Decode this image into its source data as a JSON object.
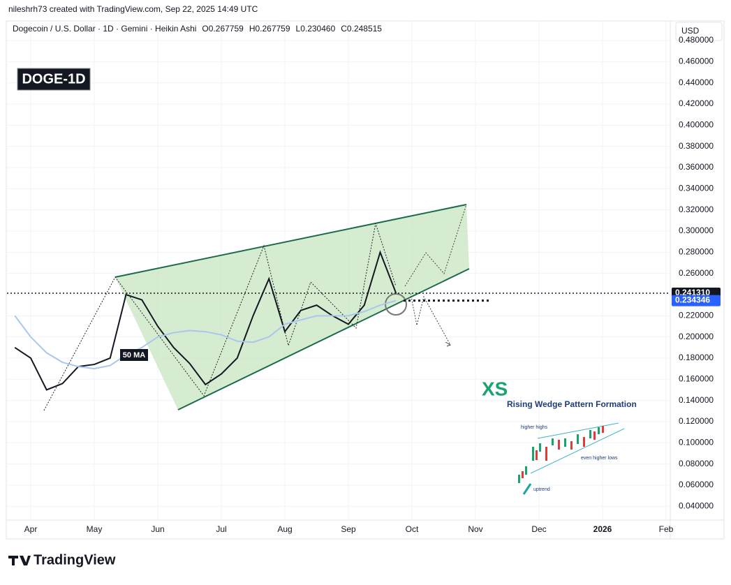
{
  "header": {
    "attribution": "nileshrh73 created with TradingView.com, Sep 22, 2025 14:49 UTC",
    "legend": "Dogecoin / U.S. Dollar · 1D · Gemini · Heikin Ashi",
    "ohlc": [
      "O0.267759",
      "H0.267759",
      "L0.230460",
      "C0.248515"
    ]
  },
  "chart_data": {
    "type": "line",
    "title": "DOGE-1D",
    "currency": "USD",
    "categories": [
      null,
      "Apr",
      null,
      null,
      null,
      "May",
      null,
      null,
      null,
      "Jun",
      null,
      null,
      null,
      "Jul",
      null,
      null,
      null,
      "Aug",
      null,
      null,
      null,
      "Sep",
      null,
      null,
      null,
      "Oct",
      null,
      null,
      null,
      "Nov",
      null,
      null,
      null,
      "Dec",
      null,
      null,
      null,
      "2026",
      null,
      null,
      null,
      "Feb"
    ],
    "series": [
      {
        "color": "#131722",
        "values": [
          0.19,
          0.18,
          0.15,
          0.156,
          0.172,
          0.174,
          0.18,
          0.24,
          0.235,
          0.21,
          0.19,
          0.175,
          0.155,
          0.165,
          0.18,
          0.22,
          0.255,
          0.205,
          0.225,
          0.23,
          0.22,
          0.212,
          0.23,
          0.28,
          0.24131,
          null,
          null,
          null,
          null,
          null,
          null,
          null,
          null,
          null,
          null,
          null,
          null,
          null,
          null,
          null,
          null,
          null
        ]
      },
      {
        "name": "50 MA",
        "color": "#a9c7ee",
        "values": [
          0.22,
          0.2,
          0.185,
          0.176,
          0.172,
          0.17,
          0.173,
          0.183,
          0.19,
          0.2,
          0.204,
          0.206,
          0.205,
          0.202,
          0.196,
          0.195,
          0.2,
          0.212,
          0.216,
          0.22,
          0.22,
          0.22,
          0.224,
          0.23,
          0.234346,
          null,
          null,
          null,
          null,
          null,
          null,
          null,
          null,
          null,
          null,
          null,
          null,
          null,
          null,
          null,
          null,
          null
        ]
      }
    ],
    "price_labels": [
      {
        "value": 0.24131,
        "label": "0.241310",
        "color": "#131722"
      },
      {
        "value": 0.234346,
        "label": "0.234346",
        "color": "#2962ff"
      }
    ],
    "ylim": [
      0.027,
      0.482
    ],
    "yticks": [
      {
        "value": 0.04,
        "label": "0.040000"
      },
      {
        "value": 0.06,
        "label": "0.060000"
      },
      {
        "value": 0.08,
        "label": "0.080000"
      },
      {
        "value": 0.1,
        "label": "0.100000"
      },
      {
        "value": 0.12,
        "label": "0.120000"
      },
      {
        "value": 0.14,
        "label": "0.140000"
      },
      {
        "value": 0.16,
        "label": "0.160000"
      },
      {
        "value": 0.18,
        "label": "0.180000"
      },
      {
        "value": 0.2,
        "label": "0.200000"
      },
      {
        "value": 0.22,
        "label": "0.220000"
      },
      {
        "value": 0.24,
        "label": "0.240000"
      },
      {
        "value": 0.26,
        "label": "0.260000"
      },
      {
        "value": 0.28,
        "label": "0.280000"
      },
      {
        "value": 0.3,
        "label": "0.300000"
      },
      {
        "value": 0.32,
        "label": "0.320000"
      },
      {
        "value": 0.34,
        "label": "0.340000"
      },
      {
        "value": 0.36,
        "label": "0.360000"
      },
      {
        "value": 0.38,
        "label": "0.380000"
      },
      {
        "value": 0.4,
        "label": "0.400000"
      },
      {
        "value": 0.42,
        "label": "0.420000"
      },
      {
        "value": 0.44,
        "label": "0.440000"
      },
      {
        "value": 0.46,
        "label": "0.460000"
      },
      {
        "value": 0.48,
        "label": "0.480000"
      }
    ],
    "grid": true
  },
  "inset": {
    "logo": "XS",
    "title": "Rising Wedge Pattern Formation",
    "notes": [
      "higher highs",
      "even higher lows",
      "uptrend"
    ]
  },
  "watermark": "TradingView"
}
